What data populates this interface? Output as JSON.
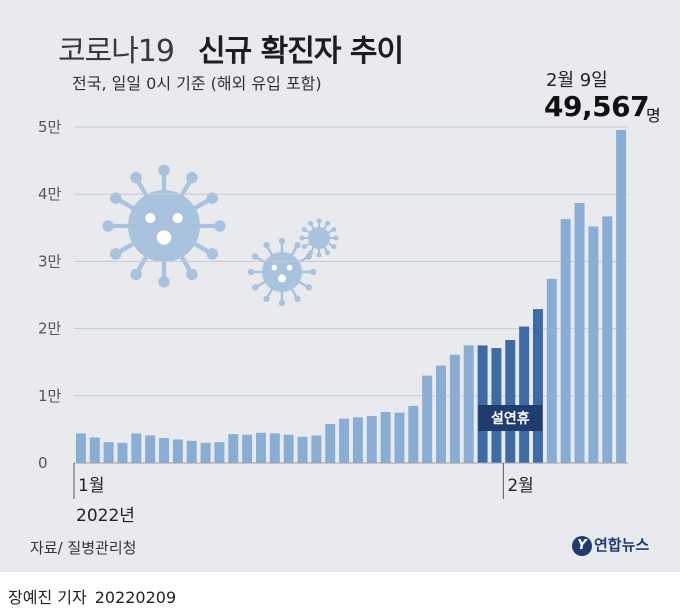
{
  "header": {
    "title_light": "코로나19",
    "title_bold": "신규 확진자 추이",
    "subtitle": "전국, 일일 0시 기준 (해외 유입 포함)"
  },
  "highlight": {
    "date": "2월 9일",
    "value": "49,567",
    "unit": "명"
  },
  "footer": {
    "source": "자료/ 질병관리청",
    "logo": "연합뉴스",
    "logo_mark": "Y",
    "reporter": "장예진 기자",
    "date": "20220209"
  },
  "colors": {
    "bar": "#8aadd4",
    "bar_holiday": "#3e6aa5",
    "holiday_label_bg": "#1f3c6e",
    "virus": "#a9c2dd",
    "grid": "#c5c9d0",
    "background": "#e9eaee"
  },
  "chart_data": {
    "type": "bar",
    "y_tick_labels": [
      "0",
      "1만",
      "2만",
      "3만",
      "4만",
      "5만"
    ],
    "y_tick_values": [
      0,
      10000,
      20000,
      30000,
      40000,
      50000
    ],
    "ylim": [
      0,
      50000
    ],
    "grid": true,
    "x_labels": [
      {
        "text": "1월",
        "sub": "2022년",
        "index": 0
      },
      {
        "text": "2월",
        "sub": "",
        "index": 31
      }
    ],
    "holiday": {
      "label": "설연휴",
      "start_index": 29,
      "end_index": 33
    },
    "dates": [
      "2022-01-01",
      "2022-01-02",
      "2022-01-03",
      "2022-01-04",
      "2022-01-05",
      "2022-01-06",
      "2022-01-07",
      "2022-01-08",
      "2022-01-09",
      "2022-01-10",
      "2022-01-11",
      "2022-01-12",
      "2022-01-13",
      "2022-01-14",
      "2022-01-15",
      "2022-01-16",
      "2022-01-17",
      "2022-01-18",
      "2022-01-19",
      "2022-01-20",
      "2022-01-21",
      "2022-01-22",
      "2022-01-23",
      "2022-01-24",
      "2022-01-25",
      "2022-01-26",
      "2022-01-27",
      "2022-01-28",
      "2022-01-29",
      "2022-01-30",
      "2022-01-31",
      "2022-02-01",
      "2022-02-02",
      "2022-02-03",
      "2022-02-04",
      "2022-02-05",
      "2022-02-06",
      "2022-02-07",
      "2022-02-08",
      "2022-02-09"
    ],
    "values": [
      4400,
      3800,
      3100,
      3000,
      4400,
      4100,
      3700,
      3500,
      3300,
      3000,
      3100,
      4300,
      4200,
      4500,
      4400,
      4200,
      3900,
      4100,
      5800,
      6600,
      6800,
      7000,
      7600,
      7500,
      8500,
      13000,
      14500,
      16100,
      17500,
      17500,
      17100,
      18300,
      20300,
      22900,
      27400,
      36300,
      38700,
      35200,
      36700,
      49567
    ]
  }
}
